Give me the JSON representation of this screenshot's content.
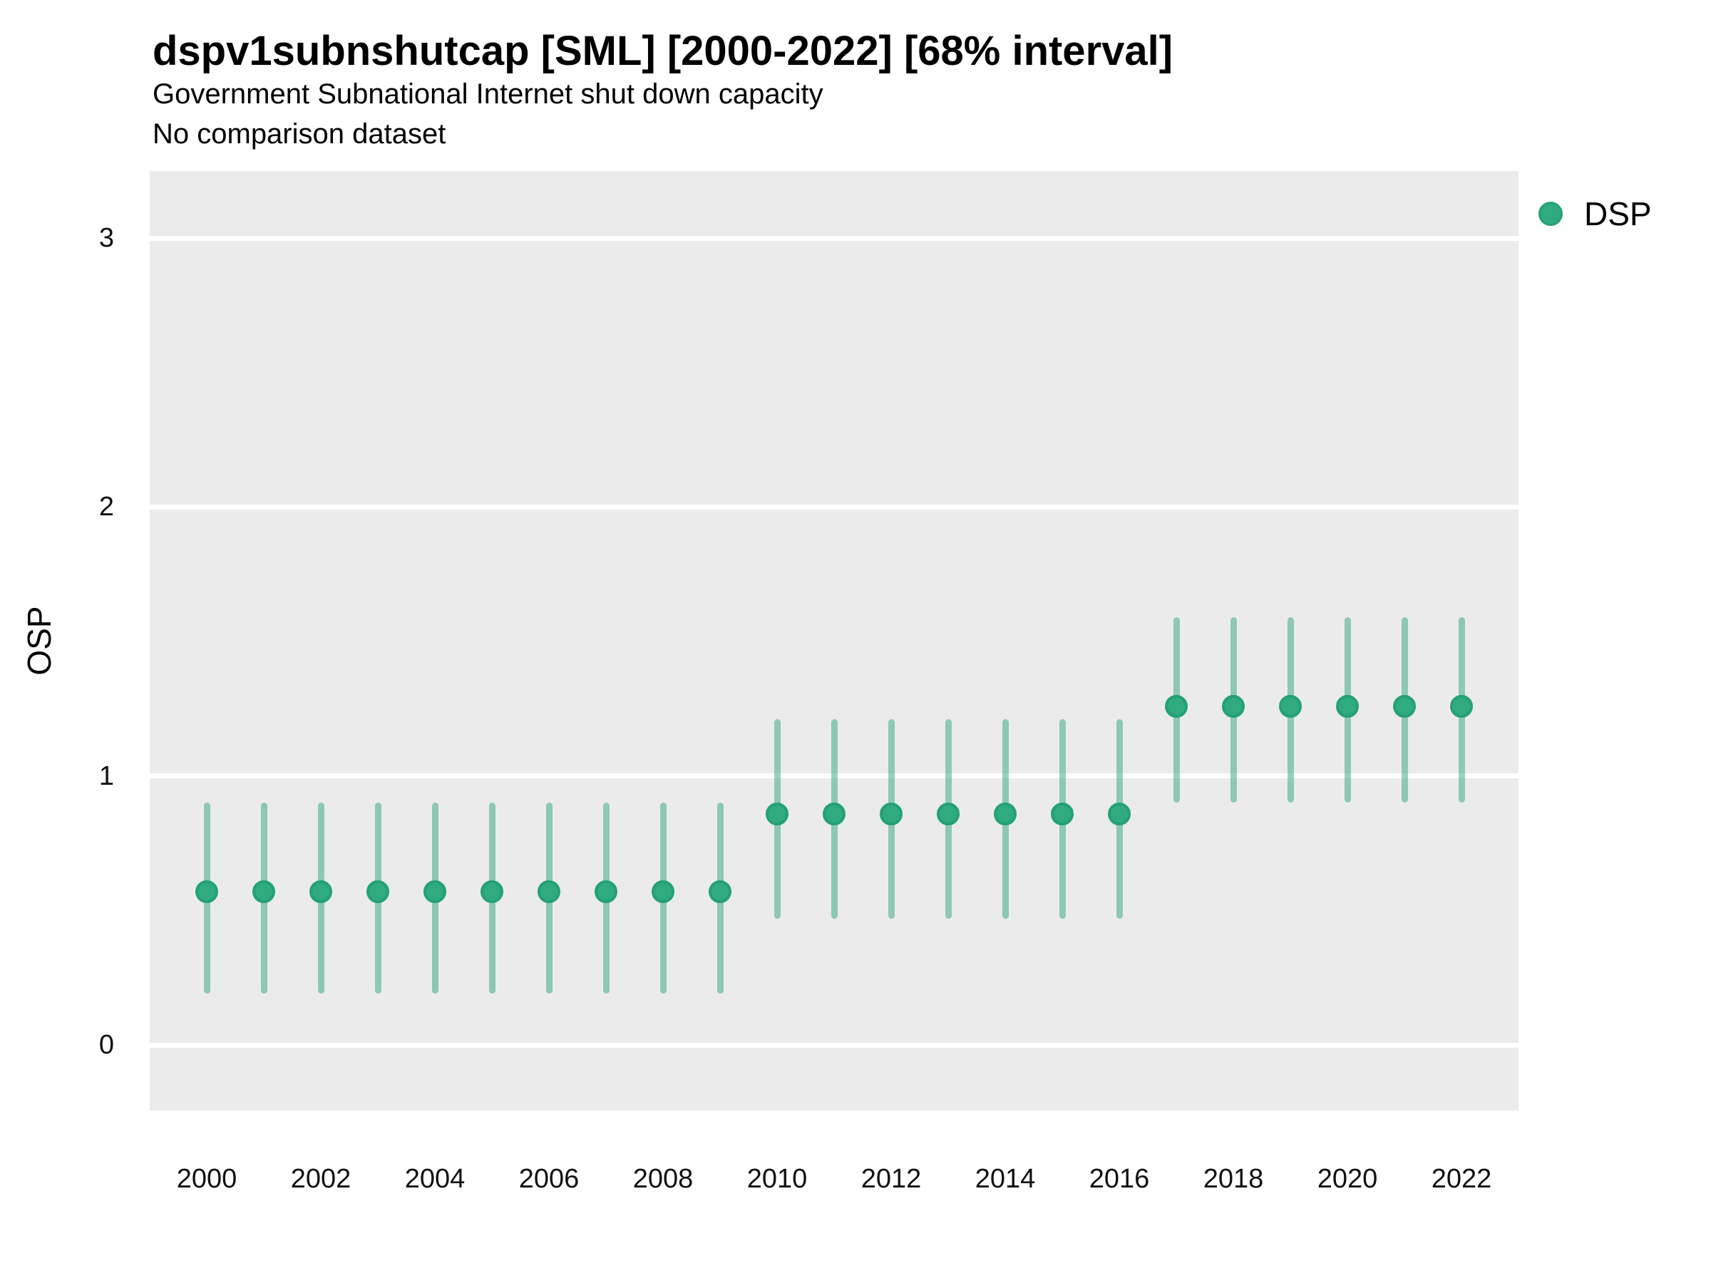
{
  "header": {
    "title": "dspv1subnshutcap [SML] [2000-2022] [68% interval]",
    "subtitle": "Government Subnational Internet shut down capacity",
    "comparison_note": "No comparison dataset"
  },
  "legend": {
    "position": "right",
    "items": [
      {
        "label": "DSP",
        "color": "#1b9e77"
      }
    ]
  },
  "colors": {
    "point_fill": "#2fab7f",
    "point_stroke": "#24a174",
    "interval_bar": "rgba(27,158,119,0.45)",
    "panel_background": "#ebebeb",
    "gridline": "#ffffff",
    "text": "#000000"
  },
  "chart_data": {
    "type": "pointrange",
    "title": "dspv1subnshutcap [SML] [2000-2022] [68% interval]",
    "subtitle": "Government Subnational Internet shut down capacity",
    "annotation": "No comparison dataset",
    "interval_level": "68%",
    "xlabel": "",
    "ylabel": "OSP",
    "ylim": [
      -0.24,
      3.25
    ],
    "yticks": [
      0,
      1,
      2,
      3
    ],
    "xticks": [
      2000,
      2002,
      2004,
      2006,
      2008,
      2010,
      2012,
      2014,
      2016,
      2018,
      2020,
      2022
    ],
    "x": [
      2000,
      2001,
      2002,
      2003,
      2004,
      2005,
      2006,
      2007,
      2008,
      2009,
      2010,
      2011,
      2012,
      2013,
      2014,
      2015,
      2016,
      2017,
      2018,
      2019,
      2020,
      2021,
      2022
    ],
    "grid": "major-y only, white lines on gray panel",
    "legend_position": "right",
    "series": [
      {
        "name": "DSP",
        "color": "#1b9e77",
        "points": [
          {
            "year": 2000,
            "est": 0.57,
            "lo": 0.19,
            "hi": 0.9
          },
          {
            "year": 2001,
            "est": 0.57,
            "lo": 0.19,
            "hi": 0.9
          },
          {
            "year": 2002,
            "est": 0.57,
            "lo": 0.19,
            "hi": 0.9
          },
          {
            "year": 2003,
            "est": 0.57,
            "lo": 0.19,
            "hi": 0.9
          },
          {
            "year": 2004,
            "est": 0.57,
            "lo": 0.19,
            "hi": 0.9
          },
          {
            "year": 2005,
            "est": 0.57,
            "lo": 0.19,
            "hi": 0.9
          },
          {
            "year": 2006,
            "est": 0.57,
            "lo": 0.19,
            "hi": 0.9
          },
          {
            "year": 2007,
            "est": 0.57,
            "lo": 0.19,
            "hi": 0.9
          },
          {
            "year": 2008,
            "est": 0.57,
            "lo": 0.19,
            "hi": 0.9
          },
          {
            "year": 2009,
            "est": 0.57,
            "lo": 0.19,
            "hi": 0.9
          },
          {
            "year": 2010,
            "est": 0.86,
            "lo": 0.47,
            "hi": 1.21
          },
          {
            "year": 2011,
            "est": 0.86,
            "lo": 0.47,
            "hi": 1.21
          },
          {
            "year": 2012,
            "est": 0.86,
            "lo": 0.47,
            "hi": 1.21
          },
          {
            "year": 2013,
            "est": 0.86,
            "lo": 0.47,
            "hi": 1.21
          },
          {
            "year": 2014,
            "est": 0.86,
            "lo": 0.47,
            "hi": 1.21
          },
          {
            "year": 2015,
            "est": 0.86,
            "lo": 0.47,
            "hi": 1.21
          },
          {
            "year": 2016,
            "est": 0.86,
            "lo": 0.47,
            "hi": 1.21
          },
          {
            "year": 2017,
            "est": 1.26,
            "lo": 0.9,
            "hi": 1.59
          },
          {
            "year": 2018,
            "est": 1.26,
            "lo": 0.9,
            "hi": 1.59
          },
          {
            "year": 2019,
            "est": 1.26,
            "lo": 0.9,
            "hi": 1.59
          },
          {
            "year": 2020,
            "est": 1.26,
            "lo": 0.9,
            "hi": 1.59
          },
          {
            "year": 2021,
            "est": 1.26,
            "lo": 0.9,
            "hi": 1.59
          },
          {
            "year": 2022,
            "est": 1.26,
            "lo": 0.9,
            "hi": 1.59
          }
        ]
      }
    ]
  }
}
